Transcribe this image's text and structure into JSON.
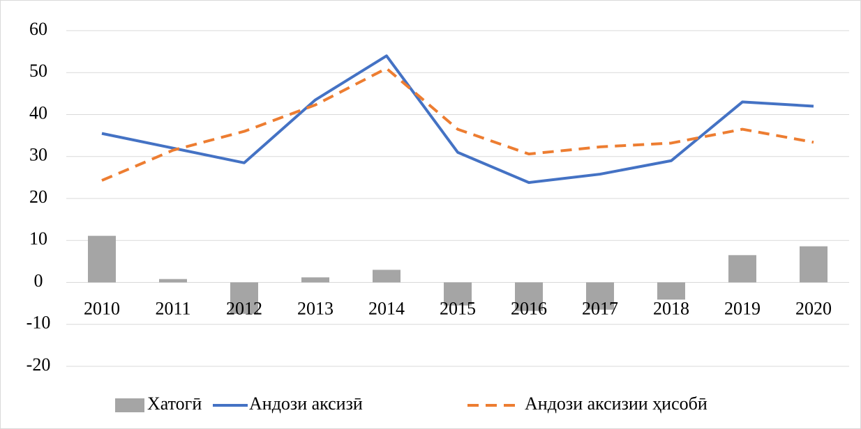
{
  "chart_data": {
    "type": "combo",
    "categories": [
      "2010",
      "2011",
      "2012",
      "2013",
      "2014",
      "2015",
      "2016",
      "2017",
      "2018",
      "2019",
      "2020"
    ],
    "series": [
      {
        "name": "Хатогӣ",
        "type": "bar",
        "color": "#a5a5a5",
        "values": [
          11.1,
          0.8,
          -7.5,
          1.2,
          3,
          -5.5,
          -6.8,
          -6.5,
          -4.1,
          6.5,
          8.6
        ]
      },
      {
        "name": "Андози аксизӣ",
        "type": "line",
        "color": "#4472c4",
        "values": [
          35.5,
          32,
          28.5,
          43.5,
          54,
          31,
          23.8,
          25.8,
          29,
          43,
          42
        ]
      },
      {
        "name": "Андози аксизии ҳисобӣ",
        "type": "line",
        "color": "#ed7d31",
        "dashed": true,
        "values": [
          24.3,
          31.5,
          36,
          42.3,
          51,
          36.5,
          30.6,
          32.3,
          33.2,
          36.5,
          33.4
        ]
      }
    ],
    "ylim": [
      -20,
      60
    ],
    "yticks": [
      -20,
      -10,
      0,
      10,
      20,
      30,
      40,
      50,
      60
    ],
    "grid": true,
    "legend": "bottom"
  }
}
